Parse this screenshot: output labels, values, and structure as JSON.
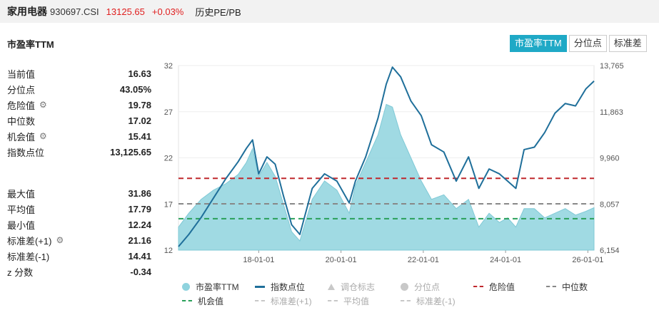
{
  "topbar": {
    "name": "家用电器",
    "code": "930697.CSI",
    "price": "13125.65",
    "change": "+0.03%",
    "hist_link": "历史PE/PB"
  },
  "section_title": "市盈率TTM",
  "tabs": [
    {
      "label": "市盈率TTM",
      "active": true
    },
    {
      "label": "分位点",
      "active": false
    },
    {
      "label": "标准差",
      "active": false
    }
  ],
  "stats_top": [
    {
      "label": "当前值",
      "value": "16.63",
      "gear": false
    },
    {
      "label": "分位点",
      "value": "43.05%",
      "gear": false
    },
    {
      "label": "危险值",
      "value": "19.78",
      "gear": true
    },
    {
      "label": "中位数",
      "value": "17.02",
      "gear": false
    },
    {
      "label": "机会值",
      "value": "15.41",
      "gear": true
    },
    {
      "label": "指数点位",
      "value": "13,125.65",
      "gear": false
    }
  ],
  "stats_bottom": [
    {
      "label": "最大值",
      "value": "31.86",
      "gear": false
    },
    {
      "label": "平均值",
      "value": "17.79",
      "gear": false
    },
    {
      "label": "最小值",
      "value": "12.24",
      "gear": false
    },
    {
      "label": "标准差(+1)",
      "value": "21.16",
      "gear": true
    },
    {
      "label": "标准差(-1)",
      "value": "14.41",
      "gear": false
    },
    {
      "label": "z 分数",
      "value": "-0.34",
      "gear": false
    }
  ],
  "legend": [
    [
      {
        "label": "市盈率TTM",
        "kind": "dot",
        "color": "#8fd3de",
        "dim": false
      },
      {
        "label": "指数点位",
        "kind": "line",
        "color": "#1f6f9a",
        "dim": false
      },
      {
        "label": "调仓标志",
        "kind": "tri",
        "color": "#c8c8c8",
        "dim": true
      },
      {
        "label": "分位点",
        "kind": "dot",
        "color": "#c8c8c8",
        "dim": true
      },
      {
        "label": "危险值",
        "kind": "dash",
        "color": "#c0282d",
        "dim": false
      },
      {
        "label": "中位数",
        "kind": "dash",
        "color": "#888888",
        "dim": false
      }
    ],
    [
      {
        "label": "机会值",
        "kind": "dash",
        "color": "#2aa05a",
        "dim": false
      },
      {
        "label": "标准差(+1)",
        "kind": "dash",
        "color": "#c8c8c8",
        "dim": true
      },
      {
        "label": "平均值",
        "kind": "dash",
        "color": "#c8c8c8",
        "dim": true
      },
      {
        "label": "标准差(-1)",
        "kind": "dash",
        "color": "#c8c8c8",
        "dim": true
      }
    ]
  ],
  "chart_data": {
    "type": "area",
    "x_tick_labels": [
      "18-01-01",
      "20-01-01",
      "22-01-01",
      "24-01-01",
      "26-01-01"
    ],
    "x_range": [
      2016.05,
      2026.15
    ],
    "y_left_ticks": [
      32,
      27,
      22,
      17,
      12
    ],
    "y_left_range": [
      12,
      32
    ],
    "y_right_ticks": [
      "13,765",
      "11,863",
      "9,960",
      "8,057",
      "6,154"
    ],
    "y_right_range": [
      6154,
      13765
    ],
    "reference_lines": [
      {
        "name": "危险值",
        "value": 19.78,
        "color": "#c0282d"
      },
      {
        "name": "中位数",
        "value": 17.02,
        "color": "#888888"
      },
      {
        "name": "机会值",
        "value": 15.41,
        "color": "#2aa05a"
      }
    ],
    "series": [
      {
        "name": "市盈率TTM",
        "axis": "left",
        "color": "#8fd3de",
        "x": [
          2016.05,
          2016.3,
          2016.6,
          2016.9,
          2017.2,
          2017.5,
          2017.7,
          2017.85,
          2018.0,
          2018.2,
          2018.4,
          2018.6,
          2018.8,
          2019.0,
          2019.3,
          2019.6,
          2019.9,
          2020.2,
          2020.35,
          2020.6,
          2020.9,
          2021.1,
          2021.25,
          2021.45,
          2021.7,
          2021.95,
          2022.2,
          2022.5,
          2022.8,
          2023.1,
          2023.35,
          2023.6,
          2023.85,
          2024.05,
          2024.25,
          2024.45,
          2024.7,
          2024.95,
          2025.2,
          2025.45,
          2025.7,
          2025.95,
          2026.15
        ],
        "values": [
          14.5,
          16.0,
          17.5,
          18.5,
          19.2,
          20.2,
          21.5,
          23.0,
          20.0,
          21.5,
          20.0,
          17.0,
          14.0,
          13.0,
          17.5,
          19.5,
          18.5,
          16.0,
          19.0,
          21.5,
          24.5,
          27.8,
          27.5,
          24.5,
          22.0,
          19.5,
          17.5,
          18.0,
          16.5,
          17.5,
          14.5,
          16.0,
          15.0,
          15.5,
          14.5,
          16.5,
          16.5,
          15.5,
          16.0,
          16.5,
          15.8,
          16.2,
          16.6
        ]
      },
      {
        "name": "指数点位",
        "axis": "right",
        "color": "#1f6f9a",
        "x": [
          2016.05,
          2016.3,
          2016.6,
          2016.9,
          2017.2,
          2017.5,
          2017.7,
          2017.85,
          2018.0,
          2018.2,
          2018.4,
          2018.6,
          2018.8,
          2019.0,
          2019.3,
          2019.6,
          2019.9,
          2020.2,
          2020.35,
          2020.6,
          2020.9,
          2021.1,
          2021.25,
          2021.45,
          2021.7,
          2021.95,
          2022.2,
          2022.5,
          2022.8,
          2023.1,
          2023.35,
          2023.6,
          2023.85,
          2024.05,
          2024.25,
          2024.45,
          2024.7,
          2024.95,
          2025.2,
          2025.45,
          2025.7,
          2025.95,
          2026.15
        ],
        "values": [
          6300,
          6800,
          7500,
          8300,
          9100,
          9800,
          10350,
          10700,
          9300,
          10000,
          9700,
          8400,
          7200,
          6800,
          8700,
          9300,
          9000,
          8100,
          9000,
          10000,
          11600,
          13000,
          13700,
          13300,
          12300,
          11700,
          10500,
          10200,
          9000,
          10000,
          8700,
          9500,
          9300,
          9000,
          8700,
          10300,
          10400,
          11000,
          11800,
          12200,
          12100,
          12800,
          13125.65
        ]
      }
    ],
    "grid": "horizontal"
  }
}
